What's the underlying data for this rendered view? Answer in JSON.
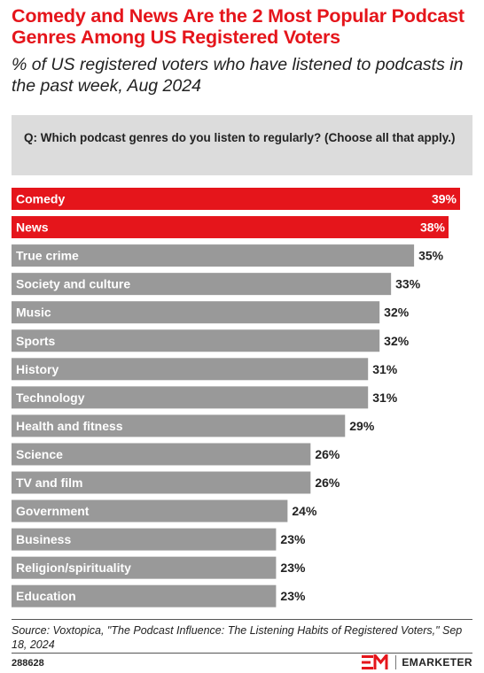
{
  "header": {
    "title": "Comedy and News Are the 2 Most Popular Podcast Genres Among US Registered Voters",
    "subtitle": "% of US registered voters who have listened to podcasts in the past week, Aug 2024"
  },
  "question": "Q: Which podcast genres do you listen to regularly? (Choose all that apply.)",
  "chart_data": {
    "type": "bar",
    "orientation": "horizontal",
    "categories": [
      "Comedy",
      "News",
      "True crime",
      "Society and culture",
      "Music",
      "Sports",
      "History",
      "Technology",
      "Health and fitness",
      "Science",
      "TV and film",
      "Government",
      "Business",
      "Religion/spirituality",
      "Education"
    ],
    "values": [
      39,
      38,
      35,
      33,
      32,
      32,
      31,
      31,
      29,
      26,
      26,
      24,
      23,
      23,
      23
    ],
    "value_labels": [
      "39%",
      "38%",
      "35%",
      "33%",
      "32%",
      "32%",
      "31%",
      "31%",
      "29%",
      "26%",
      "26%",
      "24%",
      "23%",
      "23%",
      "23%"
    ],
    "highlighted": [
      "Comedy",
      "News"
    ],
    "colors": {
      "highlight": "#e5151b",
      "default": "#999999"
    },
    "xlim": [
      0,
      39
    ],
    "grid": false,
    "legend": "none"
  },
  "footer": {
    "source": "Source: Voxtopica, \"The Podcast Influence: The Listening Habits of Registered Voters,\" Sep 18, 2024",
    "chart_id": "288628",
    "brand": "EMARKETER",
    "brand_icon": "em-logo-icon",
    "brand_color": "#e5151b"
  }
}
